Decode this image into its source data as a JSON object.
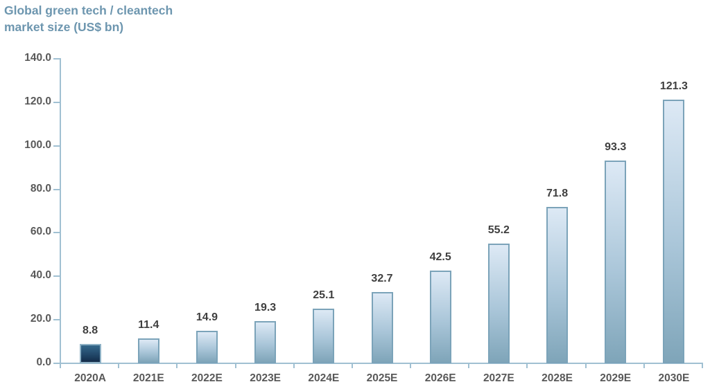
{
  "title": {
    "line1": "Global green tech / cleantech",
    "line2": "market size (US$ bn)"
  },
  "chart_data": {
    "type": "bar",
    "title": "Global green tech / cleantech market size (US$ bn)",
    "categories": [
      "2020A",
      "2021E",
      "2022E",
      "2023E",
      "2024E",
      "2025E",
      "2026E",
      "2027E",
      "2028E",
      "2029E",
      "2030E"
    ],
    "values": [
      8.8,
      11.4,
      14.9,
      19.3,
      25.1,
      32.7,
      42.5,
      55.2,
      71.8,
      93.3,
      121.3
    ],
    "data_labels": [
      "8.8",
      "11.4",
      "14.9",
      "19.3",
      "25.1",
      "32.7",
      "42.5",
      "55.2",
      "71.8",
      "93.3",
      "121.3"
    ],
    "xlabel": "",
    "ylabel": "",
    "ylim": [
      0,
      140
    ],
    "ytick_step": 20,
    "ytick_labels": [
      "0.0",
      "20.0",
      "40.0",
      "60.0",
      "80.0",
      "100.0",
      "120.0",
      "140.0"
    ],
    "grid": false,
    "legend": "none",
    "highlight_index": 0
  },
  "colors": {
    "title": "#6d96af",
    "axis_line": "#a0c0d2",
    "axis_label": "#595959",
    "data_label": "#3f3f3f",
    "bar_light_top": "#dde9f5",
    "bar_light_mid": "#aac6d9",
    "bar_light_bottom": "#7fa5b9",
    "bar_light_border": "#7ba3b9",
    "bar_dark_top": "#35688b",
    "bar_dark_mid": "#22486a",
    "bar_dark_bottom": "#132c49",
    "bar_dark_border": "#8fb2c6"
  }
}
